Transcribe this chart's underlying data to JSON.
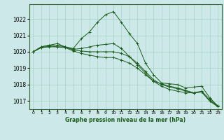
{
  "xlabel": "Graphe pression niveau de la mer (hPa)",
  "bg_color": "#cde8e8",
  "grid_color": "#99ccbb",
  "line_color": "#1a5c1a",
  "x_ticks": [
    0,
    1,
    2,
    3,
    4,
    5,
    6,
    7,
    8,
    9,
    10,
    11,
    12,
    13,
    14,
    15,
    16,
    17,
    18,
    19,
    20,
    21,
    22,
    23
  ],
  "ylim": [
    1016.5,
    1022.9
  ],
  "yticks": [
    1017,
    1018,
    1019,
    1020,
    1021,
    1022
  ],
  "series": [
    [
      1020.0,
      1020.3,
      1020.4,
      1020.5,
      1020.3,
      1020.2,
      1020.8,
      1021.2,
      1021.8,
      1022.25,
      1022.45,
      1021.8,
      1021.1,
      1020.5,
      1019.3,
      1018.6,
      1018.1,
      1018.05,
      1018.0,
      1017.8,
      1017.85,
      1017.9,
      1017.2,
      1016.7
    ],
    [
      1020.0,
      1020.3,
      1020.4,
      1020.4,
      1020.3,
      1020.15,
      1020.2,
      1020.3,
      1020.4,
      1020.45,
      1020.5,
      1020.2,
      1019.7,
      1019.2,
      1018.7,
      1018.2,
      1017.9,
      1017.7,
      1017.6,
      1017.5,
      1017.5,
      1017.6,
      1017.1,
      1016.7
    ],
    [
      1020.0,
      1020.25,
      1020.35,
      1020.3,
      1020.3,
      1020.1,
      1020.05,
      1020.0,
      1020.0,
      1020.0,
      1020.0,
      1019.9,
      1019.7,
      1019.3,
      1018.8,
      1018.3,
      1018.0,
      1017.85,
      1017.75,
      1017.6,
      1017.5,
      1017.55,
      1017.0,
      1016.7
    ],
    [
      1020.0,
      1020.25,
      1020.3,
      1020.3,
      1020.25,
      1020.05,
      1019.9,
      1019.8,
      1019.7,
      1019.65,
      1019.65,
      1019.5,
      1019.3,
      1019.0,
      1018.6,
      1018.2,
      1018.05,
      1017.9,
      1017.8,
      1017.65,
      1017.5,
      1017.55,
      1017.0,
      1016.65
    ]
  ]
}
